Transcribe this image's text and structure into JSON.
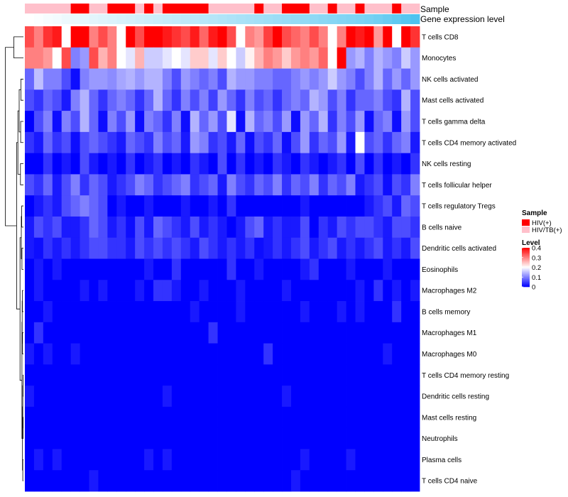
{
  "chart_data": {
    "type": "heatmap",
    "annotations": {
      "sample_label": "Sample",
      "expression_label": "Gene expression level"
    },
    "rows": [
      "T cells CD8",
      "Monocytes",
      "NK cells activated",
      "Mast cells activated",
      "T cells gamma delta",
      "T cells CD4 memory activated",
      "NK cells resting",
      "T cells follicular helper",
      "T cells regulatory  Tregs",
      "B cells naive",
      "Dendritic cells activated",
      "Eosinophils",
      "Macrophages M2",
      "B cells memory",
      "Macrophages M1",
      "Macrophages M0",
      "T cells CD4 memory resting",
      "Dendritic cells resting",
      "Mast cells resting",
      "Neutrophils",
      "Plasma cells",
      "T cells CD4 naive"
    ],
    "sample_groups": [
      "HIV/TB(+)",
      "HIV/TB(+)",
      "HIV/TB(+)",
      "HIV/TB(+)",
      "HIV/TB(+)",
      "HIV(+)",
      "HIV(+)",
      "HIV/TB(+)",
      "HIV/TB(+)",
      "HIV(+)",
      "HIV(+)",
      "HIV(+)",
      "HIV/TB(+)",
      "HIV(+)",
      "HIV/TB(+)",
      "HIV(+)",
      "HIV(+)",
      "HIV(+)",
      "HIV(+)",
      "HIV(+)",
      "HIV/TB(+)",
      "HIV/TB(+)",
      "HIV/TB(+)",
      "HIV/TB(+)",
      "HIV/TB(+)",
      "HIV(+)",
      "HIV/TB(+)",
      "HIV/TB(+)",
      "HIV(+)",
      "HIV(+)",
      "HIV(+)",
      "HIV/TB(+)",
      "HIV/TB(+)",
      "HIV(+)",
      "HIV/TB(+)",
      "HIV/TB(+)",
      "HIV(+)",
      "HIV/TB(+)",
      "HIV/TB(+)",
      "HIV/TB(+)",
      "HIV(+)",
      "HIV/TB(+)",
      "HIV/TB(+)"
    ],
    "expression_level": [
      0.0,
      0.02,
      0.05,
      0.07,
      0.1,
      0.12,
      0.14,
      0.16,
      0.18,
      0.2,
      0.22,
      0.24,
      0.26,
      0.28,
      0.3,
      0.32,
      0.34,
      0.36,
      0.38,
      0.4,
      0.42,
      0.44,
      0.46,
      0.48,
      0.5,
      0.52,
      0.54,
      0.56,
      0.58,
      0.6,
      0.62,
      0.64,
      0.66,
      0.68,
      0.7,
      0.72,
      0.74,
      0.77,
      0.8,
      0.85,
      0.9,
      0.95,
      1.0
    ],
    "values": [
      [
        0.34,
        0.3,
        0.36,
        0.38,
        0.2,
        0.42,
        0.42,
        0.3,
        0.34,
        0.3,
        0.2,
        0.4,
        0.34,
        0.4,
        0.4,
        0.38,
        0.36,
        0.34,
        0.38,
        0.32,
        0.38,
        0.42,
        0.34,
        0.2,
        0.3,
        0.28,
        0.35,
        0.4,
        0.34,
        0.32,
        0.3,
        0.34,
        0.3,
        0.2,
        0.3,
        0.42,
        0.38,
        0.4,
        0.28,
        0.42,
        0.2,
        0.42,
        0.36
      ],
      [
        0.3,
        0.3,
        0.28,
        0.2,
        0.34,
        0.1,
        0.12,
        0.34,
        0.26,
        0.3,
        0.2,
        0.18,
        0.26,
        0.16,
        0.16,
        0.18,
        0.2,
        0.18,
        0.24,
        0.24,
        0.18,
        0.24,
        0.2,
        0.16,
        0.21,
        0.26,
        0.3,
        0.28,
        0.24,
        0.28,
        0.3,
        0.28,
        0.32,
        0.2,
        0.42,
        0.12,
        0.14,
        0.1,
        0.14,
        0.12,
        0.1,
        0.16,
        0.12
      ],
      [
        0.08,
        0.15,
        0.1,
        0.1,
        0.06,
        0.01,
        0.1,
        0.12,
        0.12,
        0.11,
        0.13,
        0.14,
        0.12,
        0.14,
        0.14,
        0.1,
        0.06,
        0.12,
        0.1,
        0.08,
        0.1,
        0.06,
        0.14,
        0.12,
        0.12,
        0.1,
        0.1,
        0.08,
        0.08,
        0.1,
        0.12,
        0.1,
        0.12,
        0.16,
        0.12,
        0.1,
        0.06,
        0.1,
        0.14,
        0.08,
        0.12,
        0.08,
        0.12
      ],
      [
        0.06,
        0.04,
        0.08,
        0.06,
        0.02,
        0.1,
        0.14,
        0.08,
        0.04,
        0.08,
        0.1,
        0.08,
        0.04,
        0.08,
        0.14,
        0.08,
        0.04,
        0.1,
        0.06,
        0.1,
        0.05,
        0.12,
        0.08,
        0.04,
        0.1,
        0.06,
        0.08,
        0.04,
        0.08,
        0.1,
        0.08,
        0.14,
        0.12,
        0.06,
        0.1,
        0.04,
        0.08,
        0.08,
        0.1,
        0.06,
        0.04,
        0.14,
        0.06
      ],
      [
        0.0,
        0.06,
        0.1,
        0.01,
        0.1,
        0.06,
        0.14,
        0.08,
        0.01,
        0.1,
        0.06,
        0.12,
        0.01,
        0.1,
        0.08,
        0.04,
        0.1,
        0.01,
        0.14,
        0.08,
        0.12,
        0.06,
        0.18,
        0.01,
        0.14,
        0.08,
        0.1,
        0.06,
        0.12,
        0.01,
        0.12,
        0.08,
        0.14,
        0.04,
        0.1,
        0.06,
        0.12,
        0.01,
        0.08,
        0.1,
        0.01,
        0.12,
        0.06
      ],
      [
        0.04,
        0.02,
        0.08,
        0.04,
        0.06,
        0.01,
        0.06,
        0.08,
        0.06,
        0.04,
        0.02,
        0.08,
        0.06,
        0.04,
        0.1,
        0.06,
        0.08,
        0.02,
        0.12,
        0.1,
        0.04,
        0.06,
        0.02,
        0.08,
        0.01,
        0.06,
        0.04,
        0.08,
        0.01,
        0.06,
        0.12,
        0.04,
        0.08,
        0.06,
        0.12,
        0.02,
        0.2,
        0.06,
        0.08,
        0.04,
        0.08,
        0.1,
        0.02
      ],
      [
        0.0,
        0.0,
        0.04,
        0.0,
        0.02,
        0.0,
        0.06,
        0.02,
        0.0,
        0.02,
        0.0,
        0.04,
        0.0,
        0.02,
        0.04,
        0.0,
        0.02,
        0.0,
        0.04,
        0.02,
        0.0,
        0.06,
        0.0,
        0.04,
        0.0,
        0.02,
        0.0,
        0.04,
        0.02,
        0.0,
        0.04,
        0.02,
        0.0,
        0.02,
        0.04,
        0.0,
        0.06,
        0.0,
        0.04,
        0.0,
        0.02,
        0.0,
        0.04
      ],
      [
        0.06,
        0.04,
        0.08,
        0.02,
        0.06,
        0.1,
        0.04,
        0.08,
        0.06,
        0.02,
        0.04,
        0.06,
        0.1,
        0.08,
        0.04,
        0.06,
        0.08,
        0.1,
        0.04,
        0.06,
        0.08,
        0.02,
        0.1,
        0.06,
        0.04,
        0.08,
        0.06,
        0.1,
        0.04,
        0.08,
        0.06,
        0.1,
        0.04,
        0.08,
        0.06,
        0.1,
        0.02,
        0.04,
        0.06,
        0.01,
        0.06,
        0.04,
        0.1
      ],
      [
        0.0,
        0.02,
        0.04,
        0.02,
        0.06,
        0.08,
        0.1,
        0.08,
        0.06,
        0.0,
        0.02,
        0.0,
        0.0,
        0.02,
        0.0,
        0.0,
        0.0,
        0.02,
        0.0,
        0.0,
        0.02,
        0.0,
        0.04,
        0.0,
        0.0,
        0.0,
        0.0,
        0.0,
        0.0,
        0.0,
        0.02,
        0.0,
        0.0,
        0.0,
        0.0,
        0.0,
        0.0,
        0.02,
        0.04,
        0.06,
        0.02,
        0.08,
        0.06
      ],
      [
        0.02,
        0.06,
        0.04,
        0.06,
        0.02,
        0.02,
        0.04,
        0.08,
        0.06,
        0.02,
        0.04,
        0.01,
        0.06,
        0.02,
        0.08,
        0.06,
        0.04,
        0.02,
        0.06,
        0.02,
        0.04,
        0.02,
        0.0,
        0.02,
        0.06,
        0.08,
        0.02,
        0.04,
        0.02,
        0.02,
        0.06,
        0.0,
        0.04,
        0.02,
        0.06,
        0.04,
        0.06,
        0.06,
        0.04,
        0.02,
        0.06,
        0.06,
        0.04
      ],
      [
        0.02,
        0.01,
        0.04,
        0.02,
        0.04,
        0.02,
        0.04,
        0.06,
        0.06,
        0.04,
        0.04,
        0.02,
        0.06,
        0.04,
        0.06,
        0.04,
        0.06,
        0.04,
        0.02,
        0.06,
        0.04,
        0.02,
        0.04,
        0.02,
        0.04,
        0.01,
        0.02,
        0.04,
        0.02,
        0.04,
        0.06,
        0.02,
        0.04,
        0.06,
        0.02,
        0.04,
        0.02,
        0.04,
        0.06,
        0.02,
        0.04,
        0.02,
        0.06
      ],
      [
        0.0,
        0.02,
        0.0,
        0.02,
        0.0,
        0.0,
        0.0,
        0.0,
        0.0,
        0.0,
        0.0,
        0.0,
        0.0,
        0.02,
        0.0,
        0.0,
        0.04,
        0.0,
        0.0,
        0.0,
        0.0,
        0.0,
        0.04,
        0.0,
        0.0,
        0.02,
        0.0,
        0.0,
        0.0,
        0.0,
        0.02,
        0.04,
        0.0,
        0.0,
        0.0,
        0.02,
        0.0,
        0.0,
        0.0,
        0.02,
        0.0,
        0.0,
        0.0
      ],
      [
        0.0,
        0.02,
        0.0,
        0.0,
        0.0,
        0.0,
        0.02,
        0.0,
        0.02,
        0.0,
        0.0,
        0.0,
        0.02,
        0.0,
        0.04,
        0.04,
        0.02,
        0.0,
        0.0,
        0.02,
        0.0,
        0.0,
        0.0,
        0.02,
        0.0,
        0.0,
        0.0,
        0.0,
        0.02,
        0.0,
        0.0,
        0.0,
        0.0,
        0.0,
        0.0,
        0.0,
        0.02,
        0.0,
        0.04,
        0.0,
        0.02,
        0.0,
        0.02
      ],
      [
        0.0,
        0.0,
        0.02,
        0.0,
        0.0,
        0.0,
        0.0,
        0.0,
        0.0,
        0.0,
        0.0,
        0.0,
        0.0,
        0.0,
        0.0,
        0.0,
        0.0,
        0.0,
        0.02,
        0.0,
        0.0,
        0.0,
        0.0,
        0.02,
        0.0,
        0.0,
        0.0,
        0.0,
        0.0,
        0.0,
        0.02,
        0.0,
        0.0,
        0.0,
        0.02,
        0.0,
        0.02,
        0.0,
        0.0,
        0.0,
        0.04,
        0.0,
        0.0
      ],
      [
        0.0,
        0.04,
        0.0,
        0.0,
        0.0,
        0.0,
        0.0,
        0.0,
        0.0,
        0.0,
        0.0,
        0.0,
        0.0,
        0.0,
        0.0,
        0.0,
        0.0,
        0.0,
        0.0,
        0.0,
        0.04,
        0.0,
        0.0,
        0.0,
        0.0,
        0.0,
        0.0,
        0.0,
        0.0,
        0.0,
        0.0,
        0.0,
        0.0,
        0.0,
        0.0,
        0.0,
        0.0,
        0.0,
        0.0,
        0.0,
        0.0,
        0.0,
        0.0
      ],
      [
        0.02,
        0.0,
        0.02,
        0.0,
        0.0,
        0.02,
        0.0,
        0.0,
        0.0,
        0.0,
        0.0,
        0.0,
        0.0,
        0.0,
        0.0,
        0.0,
        0.0,
        0.0,
        0.0,
        0.0,
        0.0,
        0.0,
        0.0,
        0.0,
        0.0,
        0.0,
        0.04,
        0.0,
        0.0,
        0.0,
        0.0,
        0.0,
        0.0,
        0.0,
        0.0,
        0.0,
        0.0,
        0.0,
        0.0,
        0.02,
        0.0,
        0.0,
        0.0
      ],
      [
        0.0,
        0.0,
        0.0,
        0.0,
        0.0,
        0.0,
        0.0,
        0.0,
        0.0,
        0.0,
        0.0,
        0.0,
        0.0,
        0.0,
        0.0,
        0.0,
        0.0,
        0.0,
        0.0,
        0.0,
        0.0,
        0.0,
        0.0,
        0.0,
        0.0,
        0.0,
        0.0,
        0.0,
        0.0,
        0.0,
        0.0,
        0.0,
        0.0,
        0.0,
        0.0,
        0.0,
        0.0,
        0.0,
        0.0,
        0.0,
        0.0,
        0.0,
        0.0
      ],
      [
        0.02,
        0.0,
        0.0,
        0.0,
        0.0,
        0.0,
        0.0,
        0.0,
        0.0,
        0.0,
        0.0,
        0.0,
        0.0,
        0.0,
        0.0,
        0.02,
        0.0,
        0.0,
        0.0,
        0.0,
        0.0,
        0.0,
        0.0,
        0.0,
        0.0,
        0.0,
        0.0,
        0.0,
        0.02,
        0.0,
        0.0,
        0.0,
        0.0,
        0.0,
        0.0,
        0.0,
        0.0,
        0.0,
        0.0,
        0.0,
        0.0,
        0.0,
        0.0
      ],
      [
        0.0,
        0.0,
        0.0,
        0.0,
        0.0,
        0.0,
        0.0,
        0.0,
        0.0,
        0.0,
        0.0,
        0.0,
        0.0,
        0.0,
        0.0,
        0.0,
        0.0,
        0.0,
        0.0,
        0.0,
        0.0,
        0.0,
        0.0,
        0.0,
        0.0,
        0.0,
        0.0,
        0.0,
        0.0,
        0.0,
        0.0,
        0.0,
        0.0,
        0.0,
        0.0,
        0.0,
        0.0,
        0.0,
        0.0,
        0.0,
        0.0,
        0.0,
        0.0
      ],
      [
        0.0,
        0.0,
        0.0,
        0.0,
        0.0,
        0.0,
        0.0,
        0.0,
        0.0,
        0.0,
        0.0,
        0.0,
        0.0,
        0.0,
        0.0,
        0.0,
        0.0,
        0.0,
        0.0,
        0.0,
        0.0,
        0.0,
        0.0,
        0.0,
        0.0,
        0.0,
        0.0,
        0.0,
        0.0,
        0.0,
        0.0,
        0.0,
        0.0,
        0.0,
        0.0,
        0.0,
        0.0,
        0.0,
        0.0,
        0.0,
        0.0,
        0.0,
        0.0
      ],
      [
        0.0,
        0.02,
        0.0,
        0.02,
        0.0,
        0.0,
        0.0,
        0.0,
        0.0,
        0.0,
        0.0,
        0.0,
        0.0,
        0.02,
        0.0,
        0.02,
        0.0,
        0.0,
        0.0,
        0.0,
        0.0,
        0.0,
        0.0,
        0.0,
        0.0,
        0.0,
        0.0,
        0.0,
        0.0,
        0.0,
        0.02,
        0.0,
        0.0,
        0.0,
        0.0,
        0.02,
        0.0,
        0.0,
        0.0,
        0.0,
        0.0,
        0.0,
        0.0
      ],
      [
        0.0,
        0.0,
        0.0,
        0.0,
        0.0,
        0.0,
        0.0,
        0.02,
        0.0,
        0.0,
        0.0,
        0.0,
        0.0,
        0.0,
        0.0,
        0.0,
        0.0,
        0.0,
        0.0,
        0.0,
        0.0,
        0.0,
        0.0,
        0.0,
        0.0,
        0.0,
        0.0,
        0.0,
        0.0,
        0.02,
        0.0,
        0.0,
        0.0,
        0.0,
        0.0,
        0.0,
        0.0,
        0.0,
        0.0,
        0.0,
        0.0,
        0.0,
        0.0
      ]
    ],
    "legend": {
      "sample_title": "Sample",
      "sample_entries": [
        {
          "label": "HIV(+)",
          "color": "#ff0000"
        },
        {
          "label": "HIV/TB(+)",
          "color": "#ffc0cb"
        }
      ],
      "level_title": "Level",
      "level_ticks": [
        "0.4",
        "0.3",
        "0.2",
        "0.1",
        "0"
      ],
      "range": [
        0,
        0.4
      ],
      "placement": "right-middle"
    },
    "color_scale": {
      "low": "#0000ff",
      "mid": "#ffffff",
      "high": "#ff0000",
      "midpoint": 0.2
    },
    "expression_colors": {
      "low": "#ffffff",
      "high": "#4ec3ef"
    }
  }
}
